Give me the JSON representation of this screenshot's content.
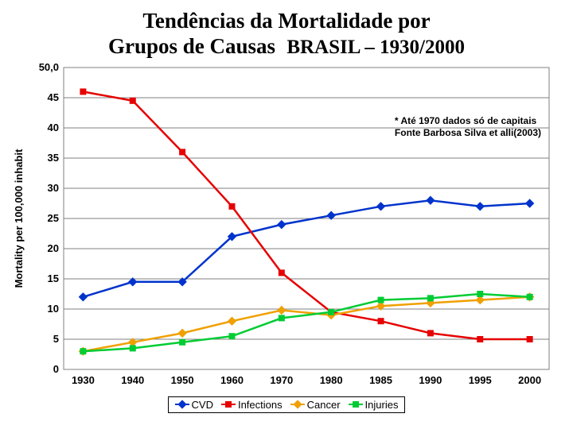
{
  "title_line1": "Tendências da Mortalidade por",
  "title_line2_a": "Grupos de Causas",
  "title_line2_b": "BRASIL – 1930/2000",
  "title_fontsize": 27,
  "title_fontsize_sub": 25,
  "title_color": "#000000",
  "chart": {
    "type": "line",
    "ylabel": "Mortality per 100,000 inhabit",
    "ylabel_fontsize": 13,
    "ylim": [
      0,
      50
    ],
    "yticks": [
      0,
      5,
      10,
      15,
      20,
      25,
      30,
      35,
      40,
      45,
      50
    ],
    "ytick_labels": [
      "0",
      "5",
      "10",
      "15",
      "20",
      "25",
      "30",
      "35",
      "40",
      "45",
      "50,0"
    ],
    "categories": [
      "1930",
      "1940",
      "1950",
      "1960",
      "1970",
      "1980",
      "1985",
      "1990",
      "1995",
      "2000"
    ],
    "axis_fontsize": 13,
    "axis_fontweight": "bold",
    "background_color": "#ffffff",
    "grid_color": "#000000",
    "series": [
      {
        "name": "CVD",
        "color": "#0033cc",
        "marker": "diamond",
        "values": [
          12,
          14.5,
          14.5,
          22,
          24,
          25.5,
          27,
          28,
          27,
          27.5
        ]
      },
      {
        "name": "Infections",
        "color": "#e60000",
        "marker": "square",
        "values": [
          46,
          44.5,
          36,
          27,
          16,
          9.5,
          8,
          6,
          5,
          5
        ]
      },
      {
        "name": "Cancer",
        "color": "#f0a000",
        "marker": "diamond",
        "values": [
          3,
          4.5,
          6,
          8,
          9.8,
          9,
          10.5,
          11,
          11.5,
          12
        ]
      },
      {
        "name": "Injuries",
        "color": "#00cc33",
        "marker": "square",
        "values": [
          3,
          3.5,
          4.5,
          5.5,
          8.5,
          9.5,
          11.5,
          11.8,
          12.5,
          12
        ]
      }
    ],
    "line_width": 2.5,
    "marker_size": 8,
    "plot_border_color": "#808080"
  },
  "note_line1": "* Até 1970 dados só de capitais",
  "note_line2": "Fonte Barbosa Silva et alli(2003)",
  "legend_prefix_cvd": "CVD",
  "legend_prefix_inf": "Infections",
  "legend_prefix_can": "Cancer",
  "legend_prefix_inj": "Injuries"
}
